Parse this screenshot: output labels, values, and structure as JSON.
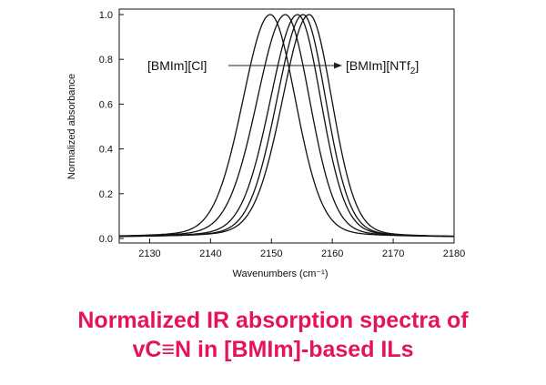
{
  "chart_data": {
    "type": "line",
    "title": "",
    "xlabel": "Wavenumbers (cm⁻¹)",
    "ylabel": "Normalized absorbance",
    "xlim": [
      2125,
      2180
    ],
    "ylim": [
      0,
      1.0
    ],
    "x_ticks": [
      2130,
      2140,
      2150,
      2160,
      2170,
      2180
    ],
    "y_ticks": [
      0.0,
      0.2,
      0.4,
      0.6,
      0.8,
      1.0
    ],
    "y_tick_labels": [
      "0.0",
      "0.2",
      "0.4",
      "0.6",
      "0.8",
      "1.0"
    ],
    "grid": false,
    "series": [
      {
        "peak": 2149.8,
        "width_low": 5.4,
        "width_high": 5.0
      },
      {
        "peak": 2152.3,
        "width_low": 5.6,
        "width_high": 4.8
      },
      {
        "peak": 2154.3,
        "width_low": 5.4,
        "width_high": 4.6
      },
      {
        "peak": 2155.2,
        "width_low": 5.2,
        "width_high": 4.5
      },
      {
        "peak": 2156.2,
        "width_low": 5.3,
        "width_high": 4.5
      }
    ],
    "annotations": {
      "left": "[BMIm][Cl]",
      "right_main": "[BMIm][NTf",
      "right_sub": "2",
      "right_close": "]"
    }
  },
  "caption": {
    "line1": "Normalized IR absorption spectra of",
    "line2": "vC≡N in [BMIm]-based ILs"
  }
}
